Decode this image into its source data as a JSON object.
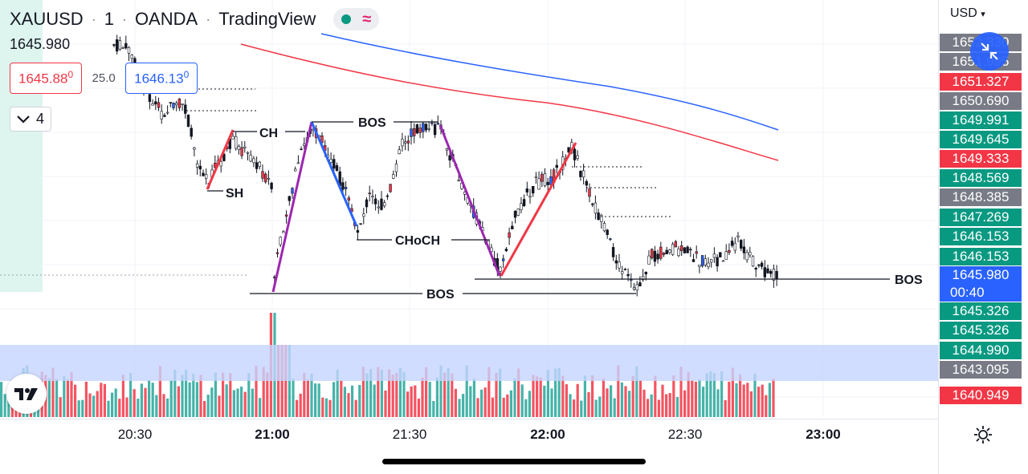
{
  "header": {
    "symbol": "XAUUSD",
    "interval": "1",
    "broker": "OANDA",
    "platform": "TradingView",
    "last_price": "1645.980",
    "market_status_icon": "green-dot-icon",
    "wave_icon": "wave-icon"
  },
  "order": {
    "sell_main": "1645.88",
    "sell_sup": "0",
    "spread": "25.0",
    "buy_main": "1646.13",
    "buy_sup": "0"
  },
  "indicators": {
    "collapse_count": "4"
  },
  "price_axis": {
    "currency": "USD",
    "labels": [
      {
        "text": "1652.330",
        "color": "#787b86"
      },
      {
        "text": "1651.995",
        "color": "#787b86"
      },
      {
        "text": "1651.327",
        "color": "#f23645"
      },
      {
        "text": "1650.690",
        "color": "#787b86"
      },
      {
        "text": "1649.991",
        "color": "#089981"
      },
      {
        "text": "1649.645",
        "color": "#089981"
      },
      {
        "text": "1649.333",
        "color": "#f23645"
      },
      {
        "text": "1648.569",
        "color": "#089981"
      },
      {
        "text": "1648.385",
        "color": "#787b86"
      },
      {
        "text": "1647.269",
        "color": "#089981"
      },
      {
        "text": "1646.153",
        "color": "#089981"
      },
      {
        "text": "1646.153",
        "color": "#089981"
      },
      {
        "text": "1645.326",
        "color": "#089981"
      },
      {
        "text": "1645.326",
        "color": "#089981"
      },
      {
        "text": "1644.990",
        "color": "#089981"
      },
      {
        "text": "1643.095",
        "color": "#787b86"
      },
      {
        "text": "1640.949",
        "color": "#f23645"
      }
    ],
    "current_price": "1645.980",
    "countdown": "00:40"
  },
  "time_axis": {
    "labels": [
      {
        "text": "20:30",
        "bold": false
      },
      {
        "text": "21:00",
        "bold": true
      },
      {
        "text": "21:30",
        "bold": false
      },
      {
        "text": "22:00",
        "bold": true
      },
      {
        "text": "22:30",
        "bold": false
      },
      {
        "text": "23:00",
        "bold": true
      }
    ]
  },
  "annotations": {
    "ch": "CH",
    "sh": "SH",
    "bos_top": "BOS",
    "choch": "CHoCH",
    "bos_mid": "BOS",
    "bos_right": "BOS"
  },
  "colors": {
    "up": "#089981",
    "down": "#f23645",
    "ema_blue": "#2962ff",
    "ema_red": "#f23645",
    "swing_purple": "#9c27b0",
    "volume_zone": "#c5d4ff",
    "highlight_zone": "#d8f2ec"
  },
  "chart_data": {
    "type": "candlestick",
    "series": [
      {
        "name": "XAUUSD",
        "x": [],
        "values": []
      }
    ],
    "time_range": [
      "20:30",
      "23:00"
    ],
    "y_range": [
      1640.949,
      1652.33
    ],
    "current_price": 1645.98
  }
}
